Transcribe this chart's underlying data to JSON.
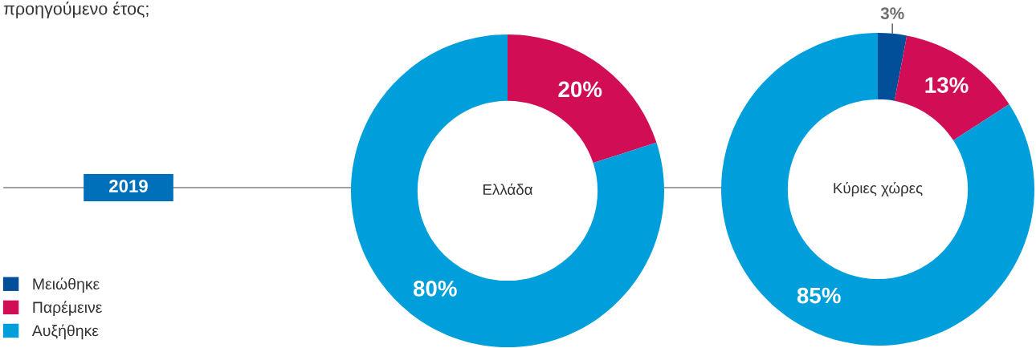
{
  "chart_data": [
    {
      "type": "other",
      "title": "προηγούμενο έτος;",
      "annotations": [
        "2019"
      ]
    },
    {
      "type": "donut",
      "categories": [
        "Μειώθηκε",
        "Παρέμεινε",
        "Αυξήθηκε"
      ],
      "colors": [
        "#004f98",
        "#d10e55",
        "#009fdb"
      ],
      "legend": "bottom left",
      "series": [
        {
          "name": "Ελλάδα",
          "values": [
            0,
            20,
            80
          ],
          "value_labels": [
            null,
            "20%",
            "80%"
          ]
        },
        {
          "name": "Κύριες χώρες",
          "values": [
            3,
            13,
            85
          ],
          "value_labels": [
            "3%",
            "13%",
            "85%"
          ]
        }
      ]
    }
  ]
}
